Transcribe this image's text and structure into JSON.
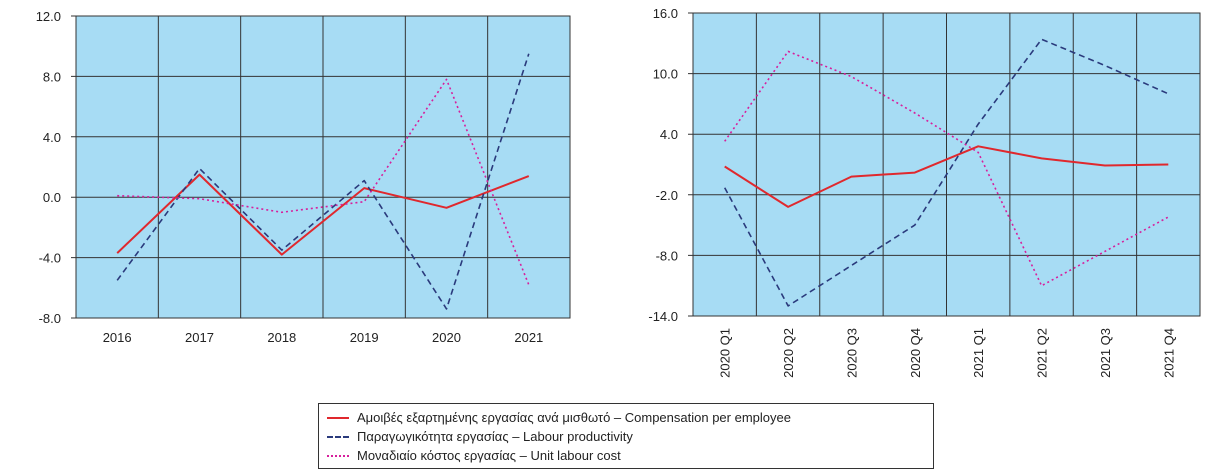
{
  "colors": {
    "plot_bg": "#a7dcf4",
    "grid": "#333333",
    "compensation": "#e0282d",
    "productivity": "#2a3a7c",
    "unit_labour_cost": "#d71f9c"
  },
  "legend": {
    "items": [
      {
        "key": "compensation",
        "label": "Αμοιβές εξαρτημένης εργασίας ανά μισθωτό – Compensation per employee",
        "style": "solid"
      },
      {
        "key": "productivity",
        "label": "Παραγωγικότητα εργασίας – Labour productivity",
        "style": "dashed"
      },
      {
        "key": "unit_labour_cost",
        "label": "Μοναδιαίο κόστος εργασίας – Unit labour cost",
        "style": "dotted"
      }
    ]
  },
  "chart_data": [
    {
      "type": "line",
      "categories": [
        "2016",
        "2017",
        "2018",
        "2019",
        "2020",
        "2021"
      ],
      "ylim": [
        -8.0,
        12.0
      ],
      "yticks": [
        "12.0",
        "8.0",
        "4.0",
        "0.0",
        "-4.0",
        "-8.0"
      ],
      "grid": true,
      "series": [
        {
          "key": "compensation",
          "values": [
            -3.7,
            1.5,
            -3.8,
            0.6,
            -0.7,
            1.4
          ]
        },
        {
          "key": "productivity",
          "values": [
            -5.5,
            1.9,
            -3.5,
            1.1,
            -7.4,
            9.5
          ]
        },
        {
          "key": "unit_labour_cost",
          "values": [
            0.1,
            -0.1,
            -1.0,
            -0.3,
            7.8,
            -5.8
          ]
        }
      ]
    },
    {
      "type": "line",
      "categories": [
        "2020 Q1",
        "2020 Q2",
        "2020 Q3",
        "2020 Q4",
        "2021 Q1",
        "2021 Q2",
        "2021 Q3",
        "2021 Q4"
      ],
      "ylim": [
        -14.0,
        16.0
      ],
      "yticks": [
        "16.0",
        "10.0",
        "4.0",
        "-2.0",
        "-8.0",
        "-14.0"
      ],
      "grid": true,
      "series": [
        {
          "key": "compensation",
          "values": [
            0.8,
            -3.2,
            -0.2,
            0.2,
            2.8,
            1.6,
            0.9,
            1.0
          ]
        },
        {
          "key": "productivity",
          "values": [
            -1.3,
            -13.0,
            -9.0,
            -5.0,
            5.0,
            13.4,
            10.8,
            8.0
          ]
        },
        {
          "key": "unit_labour_cost",
          "values": [
            3.3,
            12.2,
            9.7,
            6.1,
            2.2,
            -11.0,
            -7.6,
            -4.2
          ]
        }
      ]
    }
  ]
}
